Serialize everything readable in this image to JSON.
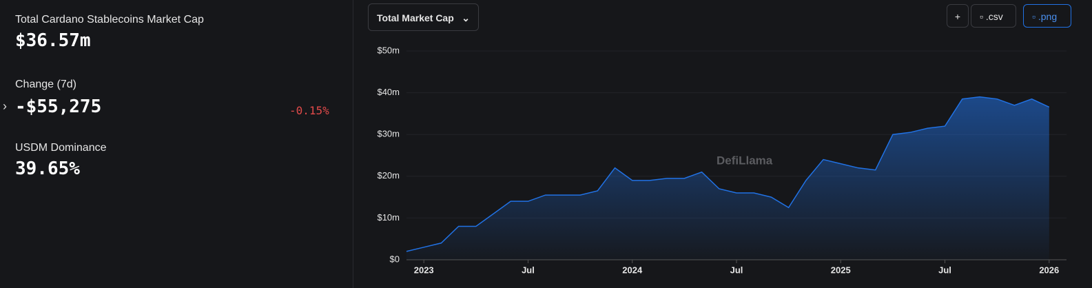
{
  "stats": {
    "market_cap_label": "Total Cardano Stablecoins Market Cap",
    "market_cap_value": "$36.57m",
    "change_label": "Change (7d)",
    "change_value": "-$55,275",
    "change_percent": "-0.15%",
    "dominance_label": "USDM Dominance",
    "dominance_value": "39.65%"
  },
  "controls": {
    "metric": "Total Market Cap",
    "add": "+",
    "csv": ".csv",
    "png": ".png"
  },
  "watermark": "DefiLlama",
  "chart_data": {
    "type": "area",
    "x": [
      "2022-12",
      "2023-01",
      "2023-02",
      "2023-03",
      "2023-04",
      "2023-05",
      "2023-06",
      "2023-07",
      "2023-08",
      "2023-09",
      "2023-10",
      "2023-11",
      "2023-12",
      "2024-01",
      "2024-02",
      "2024-03",
      "2024-04",
      "2024-05",
      "2024-06",
      "2024-07",
      "2024-08",
      "2024-09",
      "2024-10",
      "2024-11",
      "2024-12",
      "2025-01",
      "2025-02",
      "2025-03",
      "2025-04",
      "2025-05",
      "2025-06",
      "2025-07",
      "2025-08",
      "2025-09",
      "2025-10",
      "2025-11",
      "2025-12",
      "2026-01"
    ],
    "series": [
      {
        "name": "Total Market Cap",
        "color": "#2172e5",
        "values": [
          2,
          3,
          4,
          8,
          8,
          11,
          14,
          14,
          15.5,
          15.5,
          15.5,
          16.5,
          22,
          19,
          19,
          19.5,
          19.5,
          21,
          17,
          16,
          16,
          15,
          12.5,
          19,
          24,
          23,
          22,
          21.5,
          30,
          30.5,
          31.5,
          32,
          38.5,
          39,
          38.5,
          37,
          38.5,
          36.57
        ]
      }
    ],
    "xlim": [
      "2022-12",
      "2026-02"
    ],
    "xticks": [
      {
        "value": "2023-01",
        "label": "2023"
      },
      {
        "value": "2023-07",
        "label": "Jul"
      },
      {
        "value": "2024-01",
        "label": "2024"
      },
      {
        "value": "2024-07",
        "label": "Jul"
      },
      {
        "value": "2025-01",
        "label": "2025"
      },
      {
        "value": "2025-07",
        "label": "Jul"
      },
      {
        "value": "2026-01",
        "label": "2026"
      }
    ],
    "ylim": [
      0,
      50
    ],
    "yticks": [
      {
        "value": 0,
        "label": "$0"
      },
      {
        "value": 10,
        "label": "$10m"
      },
      {
        "value": 20,
        "label": "$20m"
      },
      {
        "value": 30,
        "label": "$30m"
      },
      {
        "value": 40,
        "label": "$40m"
      },
      {
        "value": 50,
        "label": "$50m"
      }
    ],
    "grid": true
  }
}
